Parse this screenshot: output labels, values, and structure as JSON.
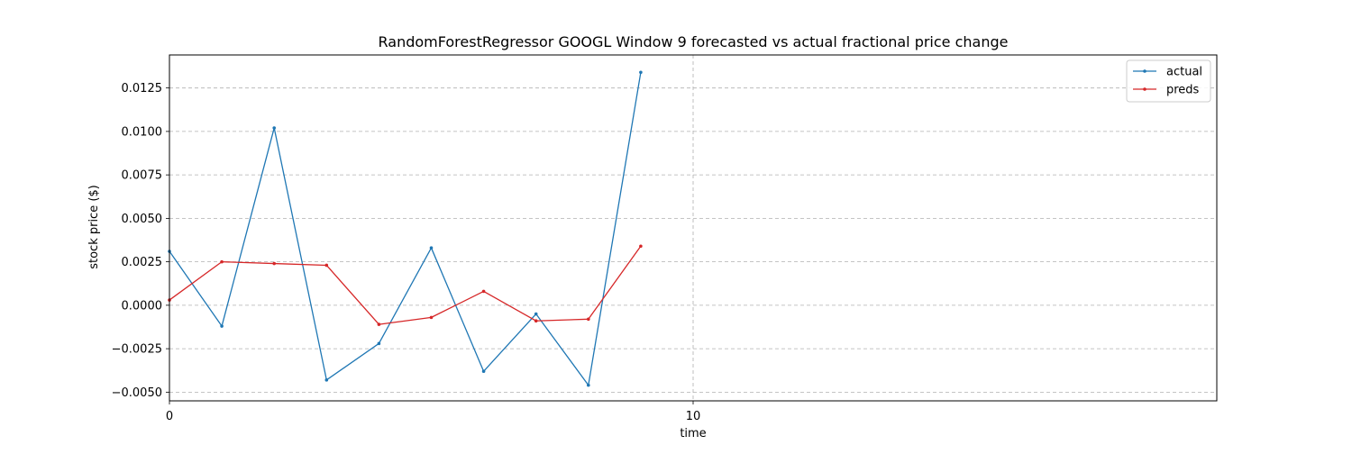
{
  "chart_data": {
    "type": "line",
    "title": "RandomForestRegressor GOOGL Window 9 forecasted vs actual fractional price change",
    "xlabel": "time",
    "ylabel": "stock price ($)",
    "xlim": [
      0,
      20
    ],
    "ylim": [
      -0.0055,
      0.0144
    ],
    "x_ticks": [
      0,
      10
    ],
    "x_tick_labels": [
      "0",
      "10"
    ],
    "y_ticks": [
      -0.005,
      -0.0025,
      0.0,
      0.0025,
      0.005,
      0.0075,
      0.01,
      0.0125
    ],
    "y_tick_labels": [
      "−0.0050",
      "−0.0025",
      "0.0000",
      "0.0025",
      "0.0050",
      "0.0075",
      "0.0100",
      "0.0125"
    ],
    "grid": {
      "x": true,
      "y": true,
      "style": "dashed"
    },
    "legend": {
      "position": "top-right"
    },
    "x": [
      0,
      1,
      2,
      3,
      4,
      5,
      6,
      7,
      8,
      9
    ],
    "series": [
      {
        "name": "actual",
        "color": "#1f77b4",
        "values": [
          0.0031,
          -0.0012,
          0.0102,
          -0.0043,
          -0.0022,
          0.0033,
          -0.0038,
          -0.0005,
          -0.0046,
          0.0134
        ]
      },
      {
        "name": "preds",
        "color": "#d62728",
        "values": [
          0.0003,
          0.0025,
          0.0024,
          0.0023,
          -0.0011,
          -0.0007,
          0.0008,
          -0.0009,
          -0.0008,
          0.0034
        ]
      }
    ]
  }
}
